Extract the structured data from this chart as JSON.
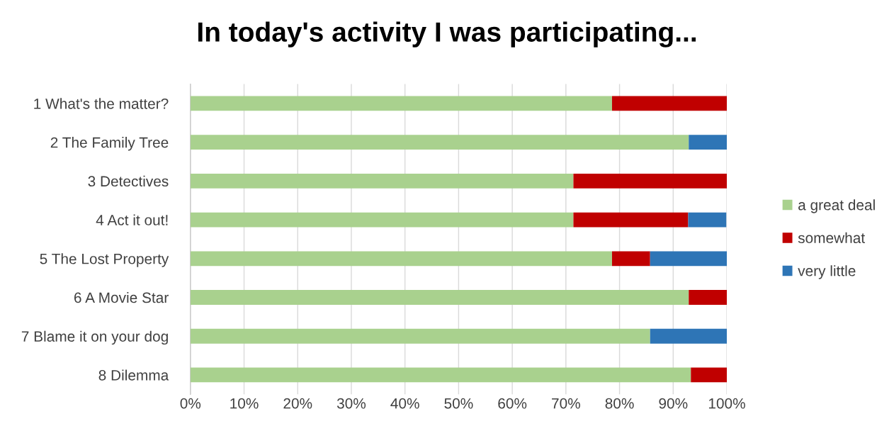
{
  "chart_data": {
    "type": "bar",
    "title": "In today's activity I was participating...",
    "orientation": "horizontal",
    "stacked": true,
    "categories": [
      "1 What's the matter?",
      "2 The Family Tree",
      "3 Detectives",
      "4 Act it out!",
      "5 The Lost Property",
      "6 A Movie Star",
      "7 Blame it on your dog",
      "8 Dilemma"
    ],
    "series": [
      {
        "name": "a great deal",
        "color": "#a9d18e",
        "values": [
          78.6,
          92.9,
          71.4,
          71.4,
          78.6,
          92.9,
          85.7,
          93.3
        ]
      },
      {
        "name": "somewhat",
        "color": "#c00000",
        "values": [
          21.4,
          0,
          28.6,
          21.4,
          7.1,
          7.1,
          0,
          6.7
        ]
      },
      {
        "name": "very little",
        "color": "#2e75b6",
        "values": [
          0,
          7.1,
          0,
          7.1,
          14.3,
          0,
          14.3,
          0
        ]
      }
    ],
    "xlim": [
      0,
      100
    ],
    "xticks": [
      {
        "value": 0,
        "label": "0%"
      },
      {
        "value": 10,
        "label": "10%"
      },
      {
        "value": 20,
        "label": "20%"
      },
      {
        "value": 30,
        "label": "30%"
      },
      {
        "value": 40,
        "label": "40%"
      },
      {
        "value": 50,
        "label": "50%"
      },
      {
        "value": 60,
        "label": "60%"
      },
      {
        "value": 70,
        "label": "70%"
      },
      {
        "value": 80,
        "label": "80%"
      },
      {
        "value": 90,
        "label": "90%"
      },
      {
        "value": 100,
        "label": "100%"
      }
    ],
    "grid": "x",
    "legend": "right"
  }
}
